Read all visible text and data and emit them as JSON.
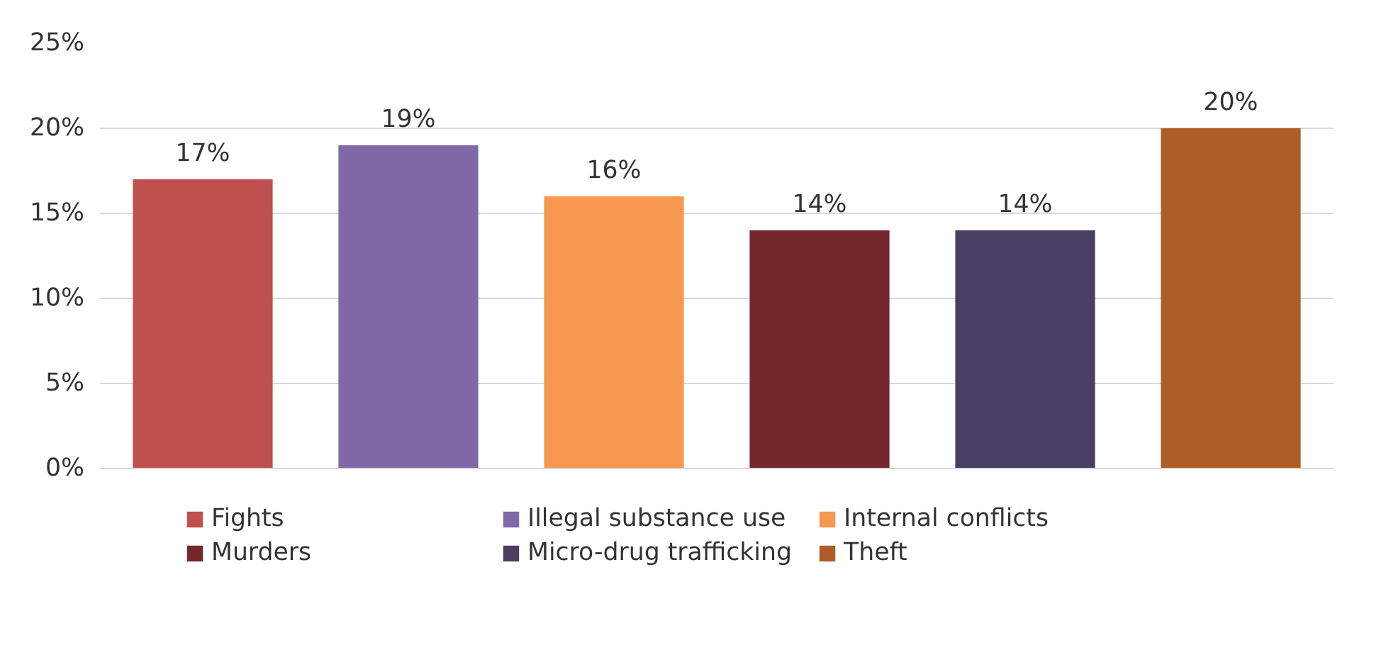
{
  "chart_data": {
    "type": "bar",
    "categories": [
      null,
      null,
      null,
      null,
      null,
      null
    ],
    "series": [
      {
        "name": "Fights",
        "color": "#c0504d",
        "values": [
          17,
          null,
          null,
          null,
          null,
          null
        ],
        "value_labels": [
          "17%",
          null,
          null,
          null,
          null,
          null
        ]
      },
      {
        "name": "Illegal substance use",
        "color": "#7f69a8",
        "values": [
          null,
          19,
          null,
          null,
          null,
          null
        ],
        "value_labels": [
          null,
          "19%",
          null,
          null,
          null,
          null
        ]
      },
      {
        "name": "Internal conflicts",
        "color": "#f79851",
        "values": [
          null,
          null,
          16,
          null,
          null,
          null
        ],
        "value_labels": [
          null,
          null,
          "16%",
          null,
          null,
          null
        ]
      },
      {
        "name": "Murders",
        "color": "#74282c",
        "values": [
          null,
          null,
          null,
          14,
          null,
          null
        ],
        "value_labels": [
          null,
          null,
          null,
          "14%",
          null,
          null
        ]
      },
      {
        "name": "Micro-drug trafficking",
        "color": "#4a3e63",
        "values": [
          null,
          null,
          null,
          null,
          14,
          null
        ],
        "value_labels": [
          null,
          null,
          null,
          null,
          "14%",
          null
        ]
      },
      {
        "name": "Theft",
        "color": "#b05c26",
        "values": [
          null,
          null,
          null,
          null,
          null,
          20
        ],
        "value_labels": [
          null,
          null,
          null,
          null,
          null,
          "20%"
        ]
      }
    ],
    "ylim": [
      0,
      25
    ],
    "yticks": [
      {
        "value": 0,
        "label": "0%"
      },
      {
        "value": 5,
        "label": "5%"
      },
      {
        "value": 10,
        "label": "10%"
      },
      {
        "value": 15,
        "label": "15%"
      },
      {
        "value": 20,
        "label": "20%"
      },
      {
        "value": 25,
        "label": "25%"
      }
    ],
    "grid": "y",
    "legend": "bottom",
    "tick_labels": "y"
  }
}
